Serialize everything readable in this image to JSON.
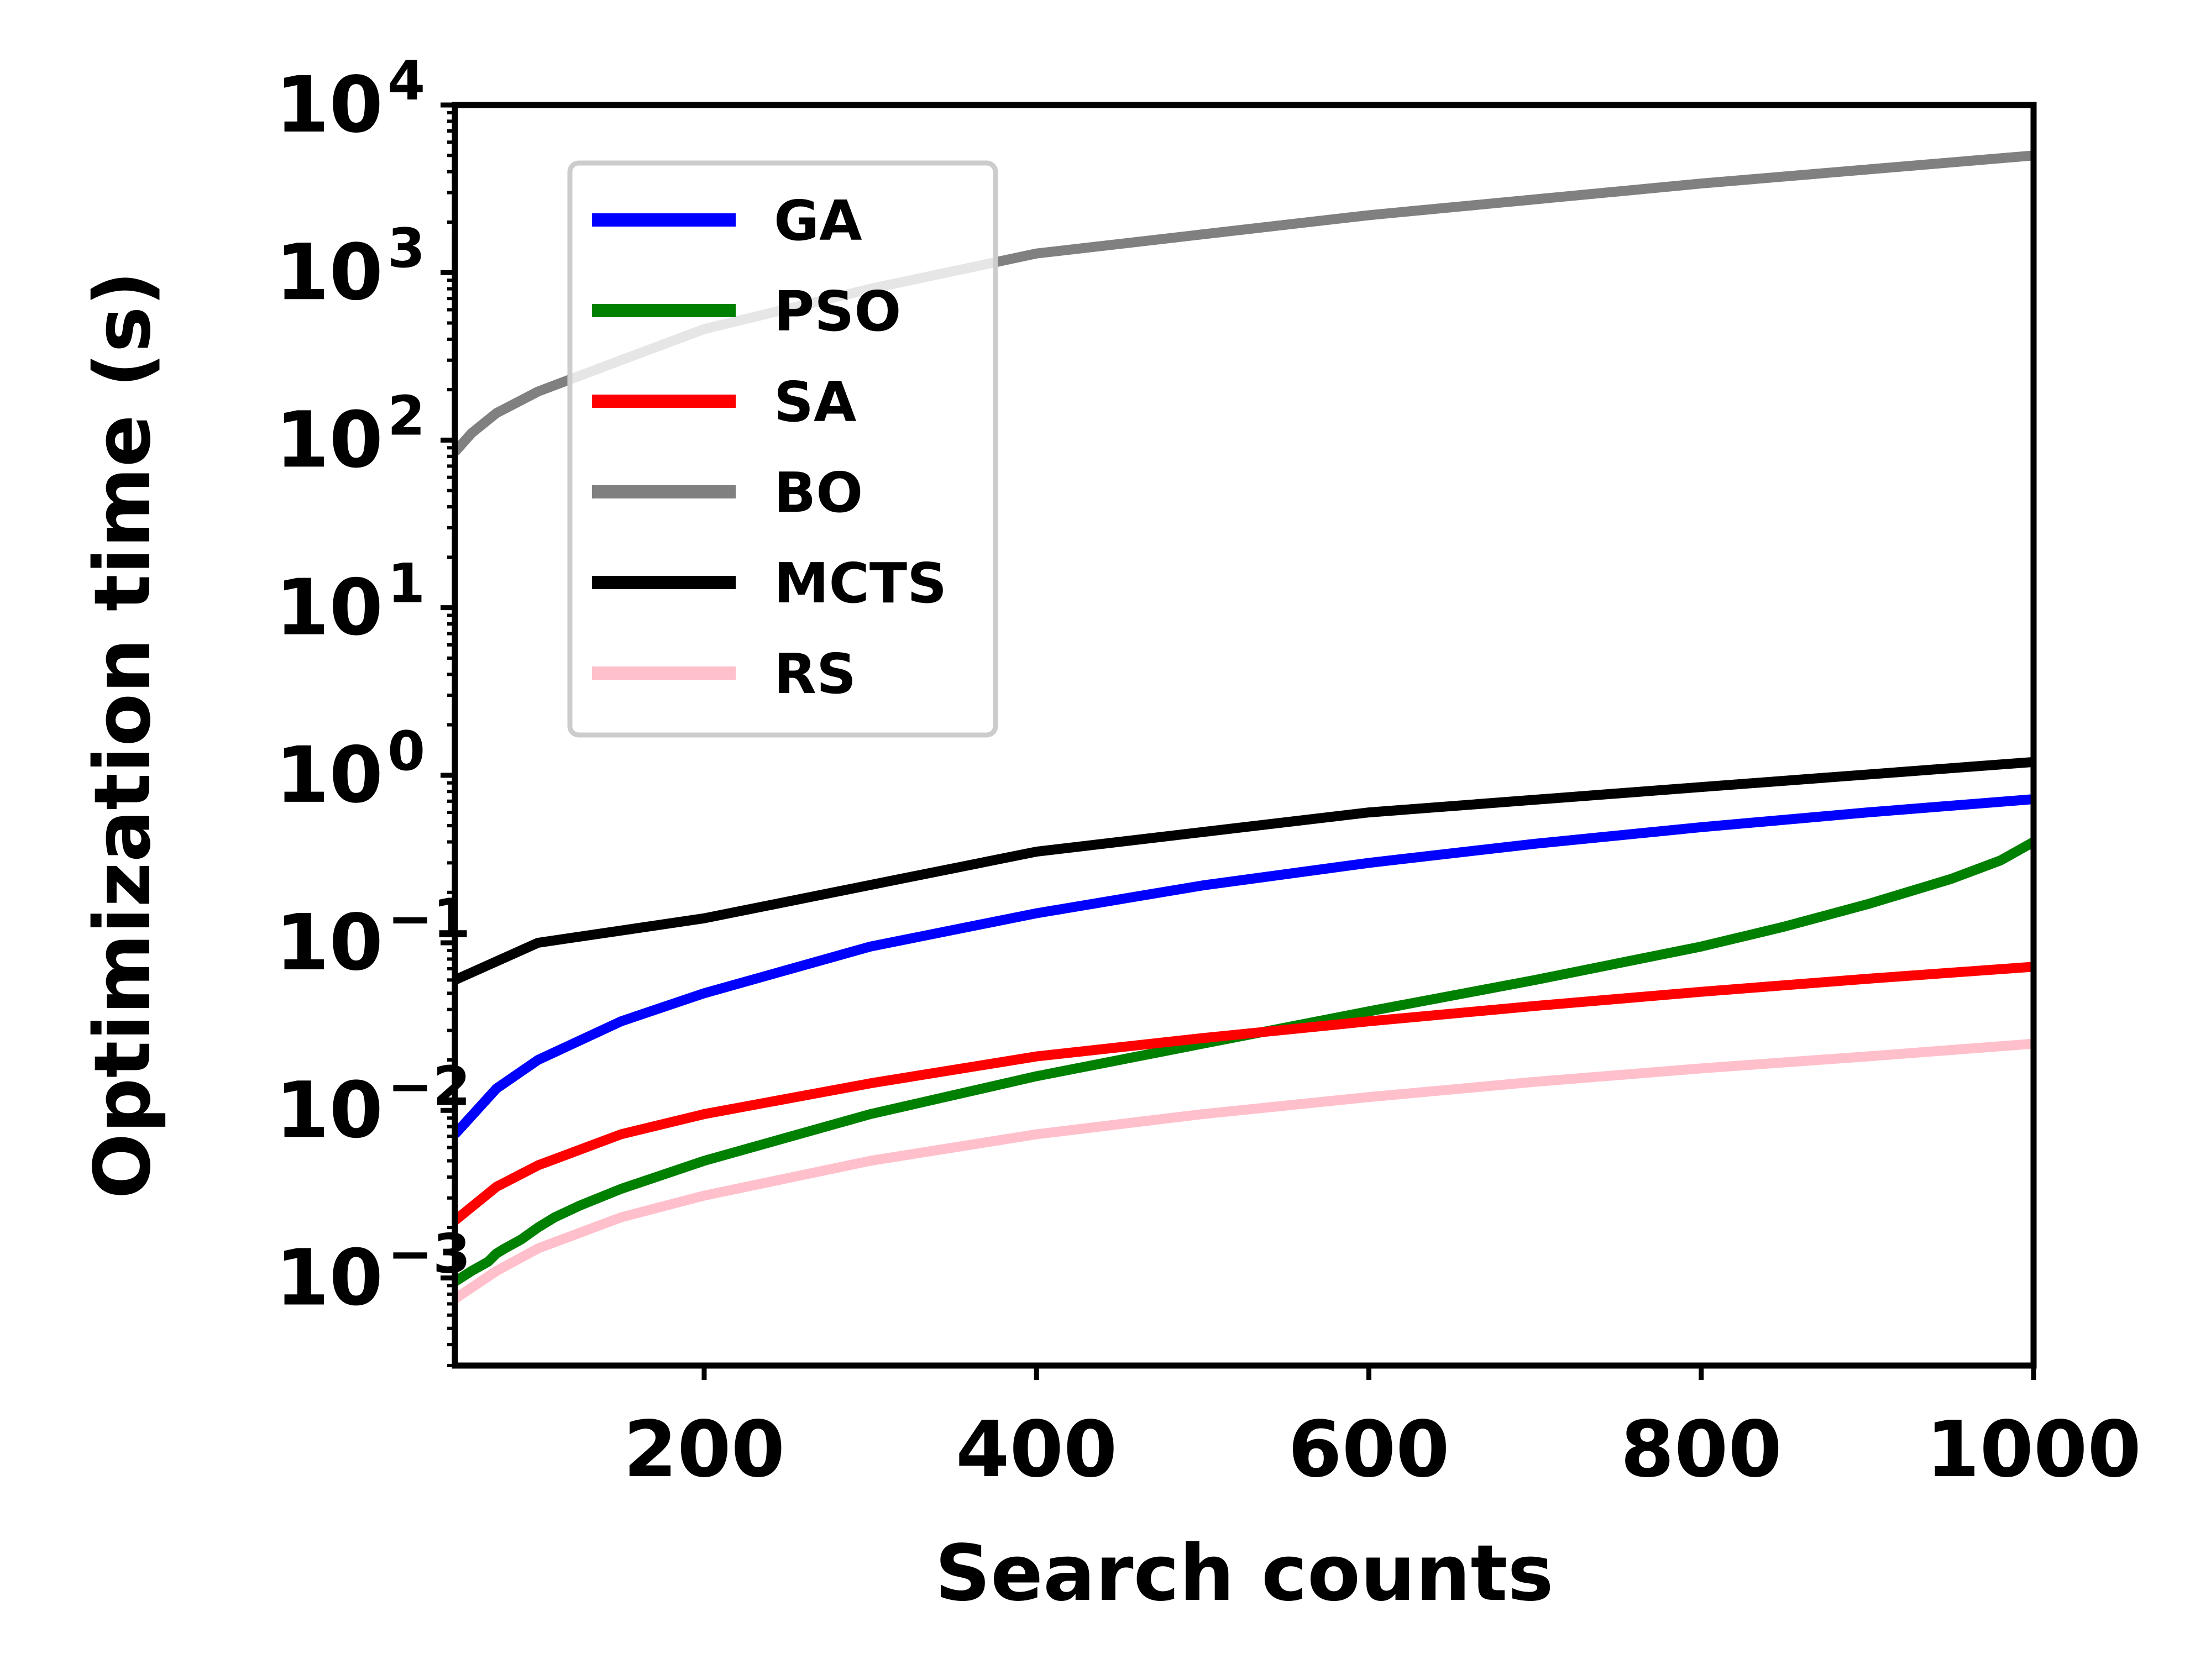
{
  "chart_data": {
    "type": "line",
    "xlabel": "Search counts",
    "ylabel": "Optimization time (s)",
    "xlim": [
      50,
      1000
    ],
    "ylim": [
      0.0003,
      10000
    ],
    "x_scale": "linear",
    "y_scale": "log",
    "x_ticks": [
      200,
      400,
      600,
      800,
      1000
    ],
    "x_tick_labels": [
      "200",
      "400",
      "600",
      "800",
      "1000"
    ],
    "y_ticks": [
      0.001,
      0.01,
      0.1,
      1,
      10,
      100,
      1000,
      10000
    ],
    "y_tick_labels": [
      {
        "base": "10",
        "exp": "−3"
      },
      {
        "base": "10",
        "exp": "−2"
      },
      {
        "base": "10",
        "exp": "−1"
      },
      {
        "base": "10",
        "exp": "0"
      },
      {
        "base": "10",
        "exp": "1"
      },
      {
        "base": "10",
        "exp": "2"
      },
      {
        "base": "10",
        "exp": "3"
      },
      {
        "base": "10",
        "exp": "4"
      }
    ],
    "legend_position": "upper-left",
    "grid": false,
    "series": [
      {
        "name": "GA",
        "color": "#0000ff",
        "x": [
          50,
          75,
          100,
          150,
          200,
          300,
          400,
          500,
          600,
          700,
          800,
          900,
          1000
        ],
        "y": [
          0.0072,
          0.0135,
          0.02,
          0.034,
          0.05,
          0.095,
          0.15,
          0.22,
          0.3,
          0.39,
          0.49,
          0.6,
          0.72
        ]
      },
      {
        "name": "PSO",
        "color": "#008000",
        "x": [
          50,
          60,
          70,
          75,
          80,
          90,
          100,
          110,
          125,
          150,
          200,
          300,
          400,
          500,
          600,
          700,
          800,
          850,
          900,
          950,
          980,
          1000
        ],
        "y": [
          0.00095,
          0.0011,
          0.00125,
          0.0014,
          0.0015,
          0.0017,
          0.002,
          0.0023,
          0.0027,
          0.0034,
          0.005,
          0.0095,
          0.016,
          0.025,
          0.039,
          0.06,
          0.095,
          0.125,
          0.17,
          0.24,
          0.31,
          0.4
        ]
      },
      {
        "name": "SA",
        "color": "#ff0000",
        "x": [
          50,
          75,
          100,
          150,
          200,
          300,
          400,
          500,
          600,
          700,
          800,
          900,
          1000
        ],
        "y": [
          0.0022,
          0.0035,
          0.0047,
          0.0072,
          0.0095,
          0.0145,
          0.021,
          0.027,
          0.034,
          0.042,
          0.051,
          0.061,
          0.072
        ]
      },
      {
        "name": "BO",
        "color": "#808080",
        "x": [
          50,
          60,
          75,
          100,
          150,
          200,
          300,
          400,
          600,
          800,
          1000
        ],
        "y": [
          85,
          110,
          145,
          195,
          300,
          460,
          800,
          1300,
          2200,
          3400,
          5000
        ]
      },
      {
        "name": "MCTS",
        "color": "#000000",
        "x": [
          50,
          100,
          200,
          400,
          600,
          800,
          1000
        ],
        "y": [
          0.06,
          0.1,
          0.14,
          0.35,
          0.6,
          0.85,
          1.2
        ]
      },
      {
        "name": "RS",
        "color": "#ffc0cb",
        "x": [
          50,
          75,
          100,
          150,
          200,
          300,
          400,
          500,
          600,
          700,
          800,
          900,
          1000
        ],
        "y": [
          0.00075,
          0.0011,
          0.0015,
          0.0023,
          0.0031,
          0.005,
          0.0072,
          0.0095,
          0.012,
          0.0148,
          0.0178,
          0.021,
          0.025
        ]
      }
    ]
  }
}
